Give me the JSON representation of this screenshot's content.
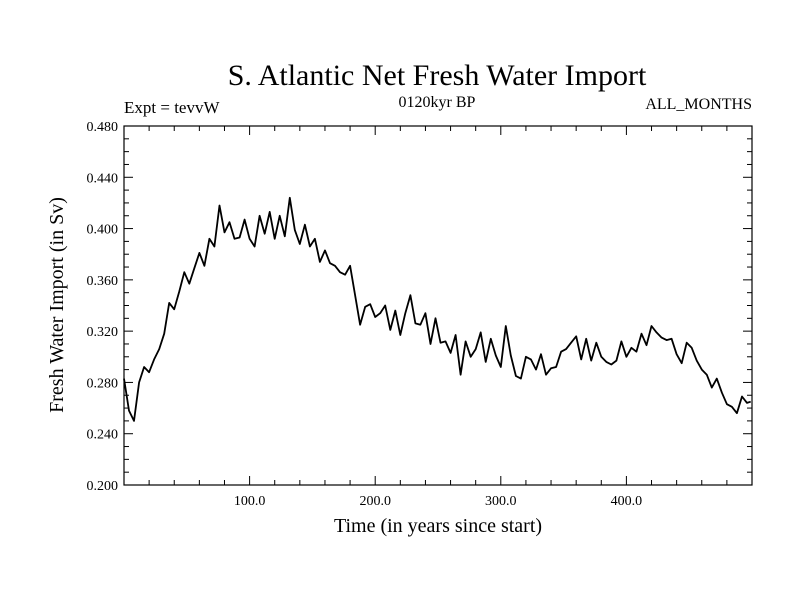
{
  "chart_data": {
    "type": "line",
    "title": "S. Atlantic Net Fresh Water Import",
    "subtitle_left": "Expt = tevvW",
    "subtitle_center": "0120kyr BP",
    "subtitle_right": "ALL_MONTHS",
    "xlabel": "Time (in years since start)",
    "ylabel": "Fresh Water Import (in Sv)",
    "xlim": [
      0,
      500
    ],
    "ylim": [
      0.2,
      0.48
    ],
    "x_ticks": [
      100,
      200,
      300,
      400
    ],
    "x_tick_labels": [
      "100.0",
      "200.0",
      "300.0",
      "400.0"
    ],
    "y_ticks": [
      0.2,
      0.24,
      0.28,
      0.32,
      0.36,
      0.4,
      0.44,
      0.48
    ],
    "y_tick_labels": [
      "0.200",
      "0.240",
      "0.280",
      "0.320",
      "0.360",
      "0.400",
      "0.440",
      "0.480"
    ],
    "grid": false,
    "series": [
      {
        "name": "Net Fresh Water Import",
        "color": "#000000",
        "x": [
          0,
          4,
          8,
          12,
          16,
          20,
          24,
          28,
          32,
          36,
          40,
          44,
          48,
          52,
          56,
          60,
          64,
          68,
          72,
          76,
          80,
          84,
          88,
          92,
          96,
          100,
          104,
          108,
          112,
          116,
          120,
          124,
          128,
          132,
          136,
          140,
          144,
          148,
          152,
          156,
          160,
          164,
          168,
          172,
          176,
          180,
          184,
          188,
          192,
          196,
          200,
          204,
          208,
          212,
          216,
          220,
          224,
          228,
          232,
          236,
          240,
          244,
          248,
          252,
          256,
          260,
          264,
          268,
          272,
          276,
          280,
          284,
          288,
          292,
          296,
          300,
          304,
          308,
          312,
          316,
          320,
          324,
          328,
          332,
          336,
          340,
          344,
          348,
          352,
          356,
          360,
          364,
          368,
          372,
          376,
          380,
          384,
          388,
          392,
          396,
          400,
          404,
          408,
          412,
          416,
          420,
          424,
          428,
          432,
          436,
          440,
          444,
          448,
          452,
          456,
          460,
          464,
          468,
          472,
          476,
          480,
          484,
          488,
          492,
          496,
          499
        ],
        "values": [
          0.283,
          0.258,
          0.25,
          0.28,
          0.292,
          0.288,
          0.298,
          0.306,
          0.318,
          0.342,
          0.337,
          0.351,
          0.366,
          0.357,
          0.369,
          0.381,
          0.371,
          0.392,
          0.386,
          0.418,
          0.397,
          0.405,
          0.392,
          0.393,
          0.407,
          0.392,
          0.386,
          0.41,
          0.396,
          0.413,
          0.392,
          0.41,
          0.394,
          0.424,
          0.399,
          0.388,
          0.403,
          0.386,
          0.392,
          0.374,
          0.383,
          0.373,
          0.371,
          0.366,
          0.364,
          0.371,
          0.348,
          0.325,
          0.339,
          0.341,
          0.331,
          0.334,
          0.34,
          0.321,
          0.336,
          0.317,
          0.334,
          0.348,
          0.326,
          0.325,
          0.334,
          0.31,
          0.33,
          0.311,
          0.312,
          0.303,
          0.317,
          0.286,
          0.312,
          0.3,
          0.306,
          0.319,
          0.296,
          0.314,
          0.301,
          0.292,
          0.324,
          0.301,
          0.285,
          0.283,
          0.3,
          0.298,
          0.29,
          0.302,
          0.286,
          0.291,
          0.292,
          0.304,
          0.306,
          0.311,
          0.316,
          0.298,
          0.314,
          0.297,
          0.311,
          0.3,
          0.296,
          0.294,
          0.297,
          0.312,
          0.3,
          0.307,
          0.304,
          0.318,
          0.309,
          0.324,
          0.319,
          0.315,
          0.313,
          0.314,
          0.302,
          0.295,
          0.311,
          0.307,
          0.297,
          0.29,
          0.286,
          0.276,
          0.283,
          0.272,
          0.263,
          0.261,
          0.256,
          0.269,
          0.264,
          0.265
        ]
      }
    ]
  }
}
